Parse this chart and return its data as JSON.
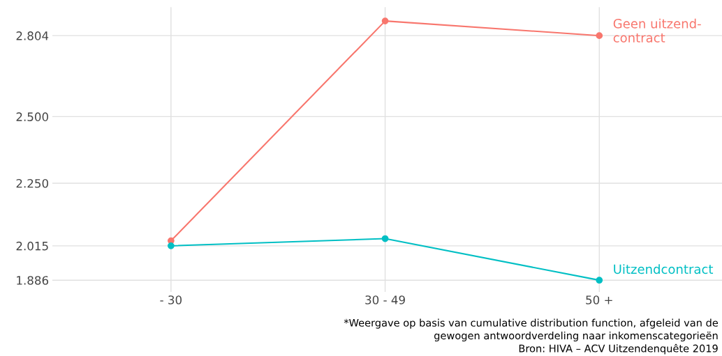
{
  "chart_data": {
    "type": "line",
    "categories": [
      "- 30",
      "30 - 49",
      "50 +"
    ],
    "series": [
      {
        "name": "Geen uitzend-\ncontract",
        "color": "#f8766d",
        "values": [
          2034,
          2859,
          2804
        ]
      },
      {
        "name": "Uitzendcontract",
        "color": "#00bfc4",
        "values": [
          2015,
          2042,
          1886
        ]
      }
    ],
    "ylim": [
      1842,
      2911
    ],
    "yticks": [
      {
        "value": 1886,
        "label": "1.886"
      },
      {
        "value": 2015,
        "label": "2.015"
      },
      {
        "value": 2250,
        "label": "2.250"
      },
      {
        "value": 2500,
        "label": "2.500"
      },
      {
        "value": 2804,
        "label": "2.804"
      }
    ],
    "grid": true,
    "legend": false,
    "marker": "circle",
    "line_style": "solid",
    "annotations": [
      "*Weergave op basis van cumulative distribution function, afgeleid van de",
      "gewogen antwoordverdeling naar inkomenscategorieën",
      "Bron: HIVA – ACV Uitzendenquête 2019"
    ]
  }
}
